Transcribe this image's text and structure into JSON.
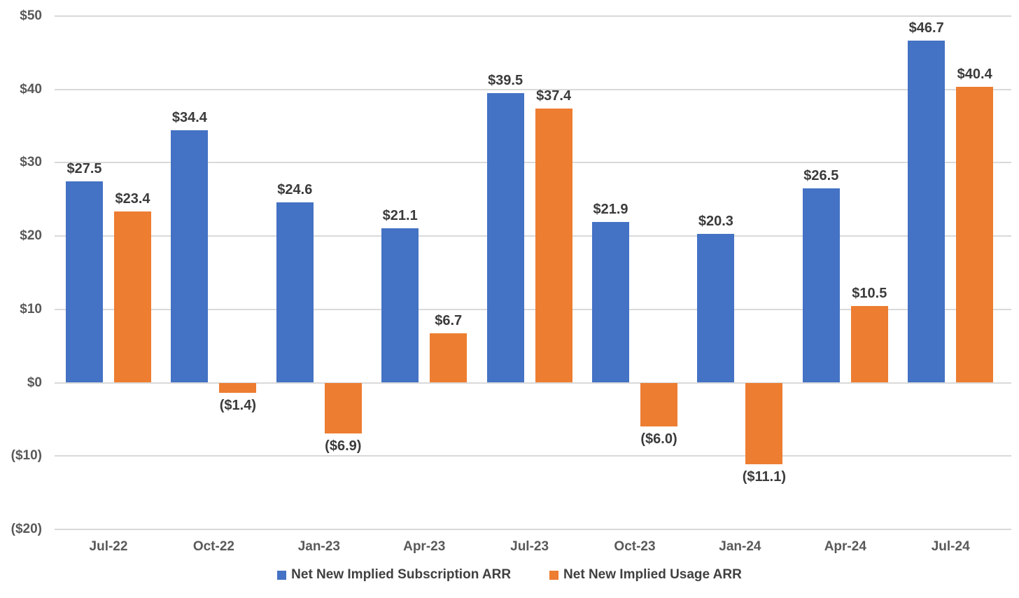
{
  "chart_data": {
    "type": "bar",
    "title": "",
    "categories": [
      "Jul-22",
      "Oct-22",
      "Jan-23",
      "Apr-23",
      "Jul-23",
      "Oct-23",
      "Jan-24",
      "Apr-24",
      "Jul-24"
    ],
    "series": [
      {
        "name": "Net New Implied Subscription ARR",
        "color": "#4472C4",
        "values": [
          27.5,
          34.4,
          24.6,
          21.1,
          39.5,
          21.9,
          20.3,
          26.5,
          46.7
        ],
        "labels": [
          "$27.5",
          "$34.4",
          "$24.6",
          "$21.1",
          "$39.5",
          "$21.9",
          "$20.3",
          "$26.5",
          "$46.7"
        ]
      },
      {
        "name": "Net New Implied Usage ARR",
        "color": "#ED7D31",
        "values": [
          23.4,
          -1.4,
          -6.9,
          6.7,
          37.4,
          -6.0,
          -11.1,
          10.5,
          40.4
        ],
        "labels": [
          "$23.4",
          "($1.4)",
          "($6.9)",
          "$6.7",
          "$37.4",
          "($6.0)",
          "($11.1)",
          "$10.5",
          "$40.4"
        ]
      }
    ],
    "y_axis": {
      "min": -20,
      "max": 50,
      "tick_step": 10,
      "ticks": [
        {
          "value": 50,
          "label": "$50"
        },
        {
          "value": 40,
          "label": "$40"
        },
        {
          "value": 30,
          "label": "$30"
        },
        {
          "value": 20,
          "label": "$20"
        },
        {
          "value": 10,
          "label": "$10"
        },
        {
          "value": 0,
          "label": "$0"
        },
        {
          "value": -10,
          "label": "($10)"
        },
        {
          "value": -20,
          "label": "($20)"
        }
      ]
    },
    "xlabel": "",
    "ylabel": "",
    "grid": true,
    "legend_position": "bottom",
    "gridline_color": "#d9d9d9",
    "data_label_color": "#3b3b3b",
    "axis_label_color": "#595959"
  }
}
